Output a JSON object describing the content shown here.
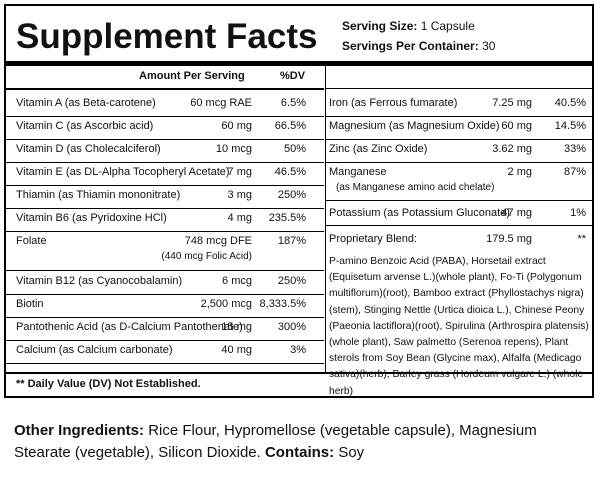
{
  "title": "Supplement Facts",
  "serving": {
    "size_label": "Serving Size:",
    "size_value": "1 Capsule",
    "per_container_label": "Servings Per Container:",
    "per_container_value": "30"
  },
  "headers": {
    "amount": "Amount Per Serving",
    "dv": "%DV"
  },
  "left_rows": [
    {
      "name": "Vitamin A (as Beta-carotene)",
      "amount": "60 mcg RAE",
      "dv": "6.5%"
    },
    {
      "name": "Vitamin C (as Ascorbic acid)",
      "amount": "60 mg",
      "dv": "66.5%"
    },
    {
      "name": "Vitamin D (as Cholecalciferol)",
      "amount": "10 mcg",
      "dv": "50%"
    },
    {
      "name": "Vitamin E (as DL-Alpha Tocopheryl Acetate)",
      "amount": "7 mg",
      "dv": "46.5%"
    },
    {
      "name": "Thiamin (as Thiamin mononitrate)",
      "amount": "3 mg",
      "dv": "250%"
    },
    {
      "name": "Vitamin B6 (as Pyridoxine HCl)",
      "amount": "4 mg",
      "dv": "235.5%"
    },
    {
      "name": "Folate",
      "amount": "748 mcg DFE",
      "dv": "187%",
      "sub": "(440 mcg Folic Acid)"
    },
    {
      "name": "Vitamin B12 (as Cyanocobalamin)",
      "amount": "6 mcg",
      "dv": "250%"
    },
    {
      "name": "Biotin",
      "amount": "2,500 mcg",
      "dv": "8,333.5%"
    },
    {
      "name": "Pantothenic Acid (as D-Calcium Pantothenate)",
      "amount": "15 mg",
      "dv": "300%"
    },
    {
      "name": "Calcium (as Calcium carbonate)",
      "amount": "40 mg",
      "dv": "3%"
    }
  ],
  "right_rows": [
    {
      "name": "Iron (as Ferrous fumarate)",
      "amount": "7.25 mg",
      "dv": "40.5%"
    },
    {
      "name": "Magnesium (as Magnesium Oxide)",
      "amount": "60 mg",
      "dv": "14.5%"
    },
    {
      "name": "Zinc (as Zinc Oxide)",
      "amount": "3.62 mg",
      "dv": "33%"
    },
    {
      "name": "Manganese",
      "amount": "2 mg",
      "dv": "87%",
      "sub": "(as Manganese amino acid chelate)"
    },
    {
      "name": "Potassium (as Potassium Gluconate)",
      "amount": "47 mg",
      "dv": "1%"
    }
  ],
  "blend": {
    "name": "Proprietary Blend:",
    "amount": "179.5 mg",
    "dv": "**",
    "ingredients": "P-amino Benzoic Acid (PABA), Horsetail extract (Equisetum arvense L.)(whole plant), Fo-Ti (Polygonum multiflorum)(root), Bamboo extract (Phyllostachys nigra)(stem), Stinging Nettle (Urtica dioica L.), Chinese Peony (Paeonia lactiflora)(root), Spirulina (Arthrospira platensis)(whole plant), Saw palmetto (Serenoa repens), Plant sterols from Soy Bean (Glycine max), Alfalfa (Medicago sativa)(herb), Barley grass (Hordeum vulgare L.) (whole herb)"
  },
  "footnote": "** Daily Value (DV) Not Established.",
  "other_ingredients": {
    "label": "Other Ingredients:",
    "text": "Rice Flour, Hypromellose (vegetable capsule), Magnesium Stearate (vegetable), Silicon Dioxide.",
    "contains_label": "Contains:",
    "contains_text": "Soy"
  }
}
